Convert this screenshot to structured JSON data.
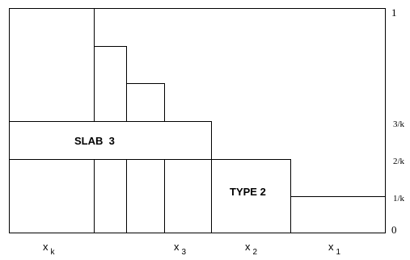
{
  "labels": {
    "slab": "SLAB  3",
    "type": "TYPE 2"
  },
  "right_ticks": [
    "1",
    "3/k",
    "2/k",
    "1/k",
    "0"
  ],
  "bottom_labels": [
    {
      "main": "x",
      "sub": "k"
    },
    {
      "main": "x",
      "sub": "3"
    },
    {
      "main": "x",
      "sub": "2"
    },
    {
      "main": "x",
      "sub": "1"
    }
  ]
}
